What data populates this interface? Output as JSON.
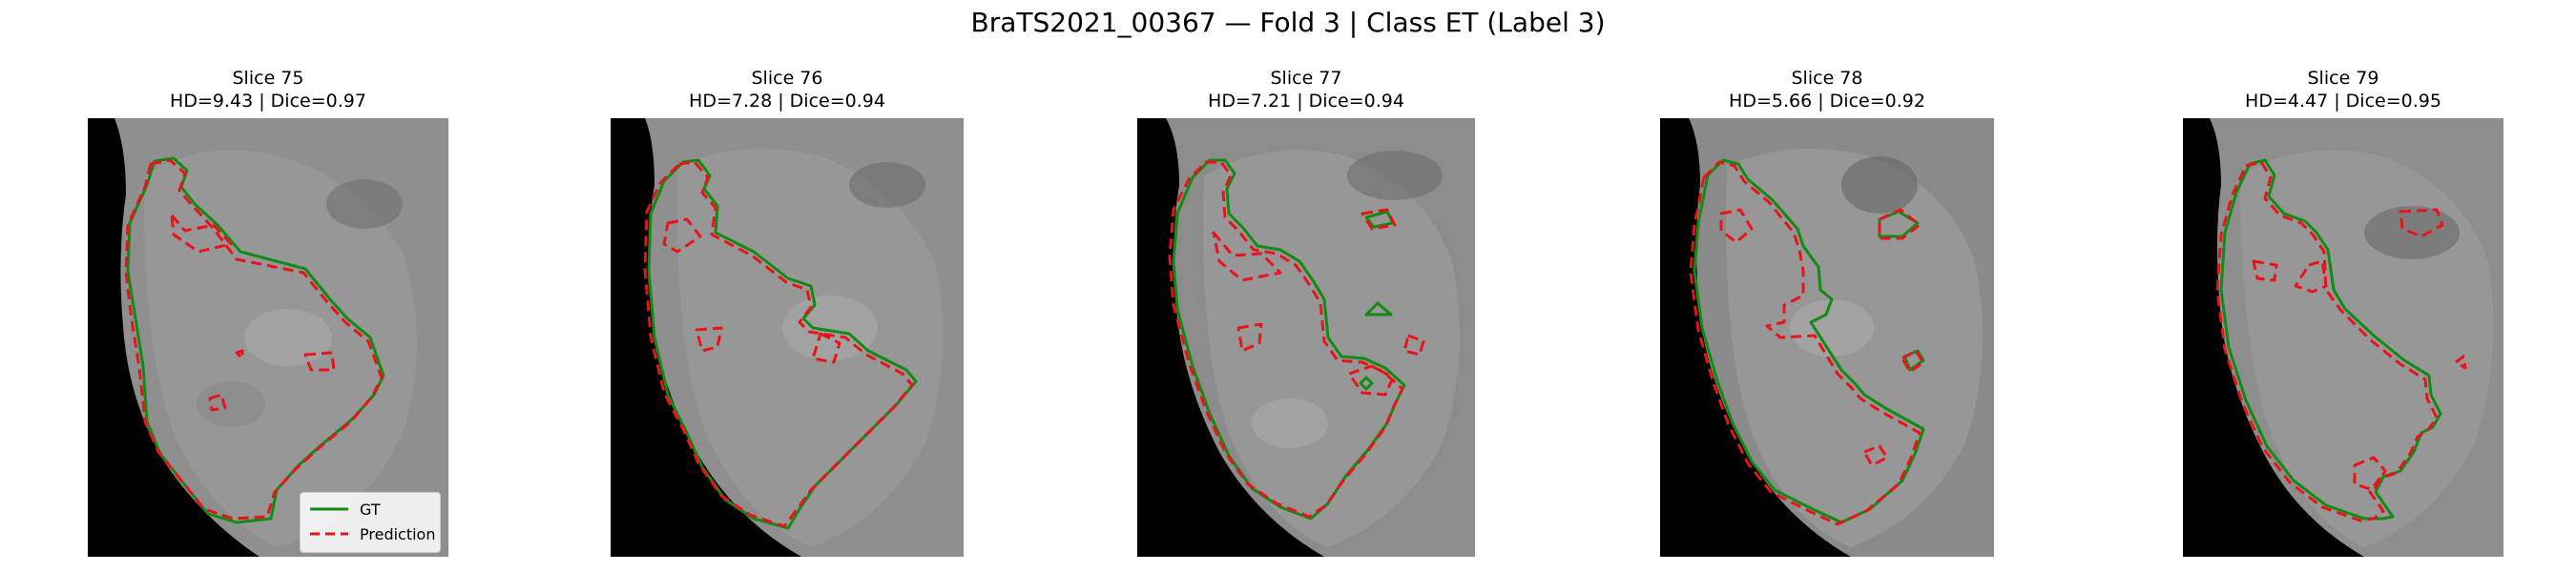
{
  "figure_title": "BraTS2021_00367 — Fold 3 | Class ET (Label 3)",
  "panels": [
    {
      "slice": "Slice 75",
      "metrics": "HD=9.43 | Dice=0.97"
    },
    {
      "slice": "Slice 76",
      "metrics": "HD=7.28 | Dice=0.94"
    },
    {
      "slice": "Slice 77",
      "metrics": "HD=7.21 | Dice=0.94"
    },
    {
      "slice": "Slice 78",
      "metrics": "HD=5.66 | Dice=0.92"
    },
    {
      "slice": "Slice 79",
      "metrics": "HD=4.47 | Dice=0.95"
    }
  ],
  "legend": {
    "gt": "GT",
    "prediction": "Prediction"
  },
  "colors": {
    "gt": "#138a13",
    "prediction": "#e8141b",
    "background": "#000000"
  }
}
